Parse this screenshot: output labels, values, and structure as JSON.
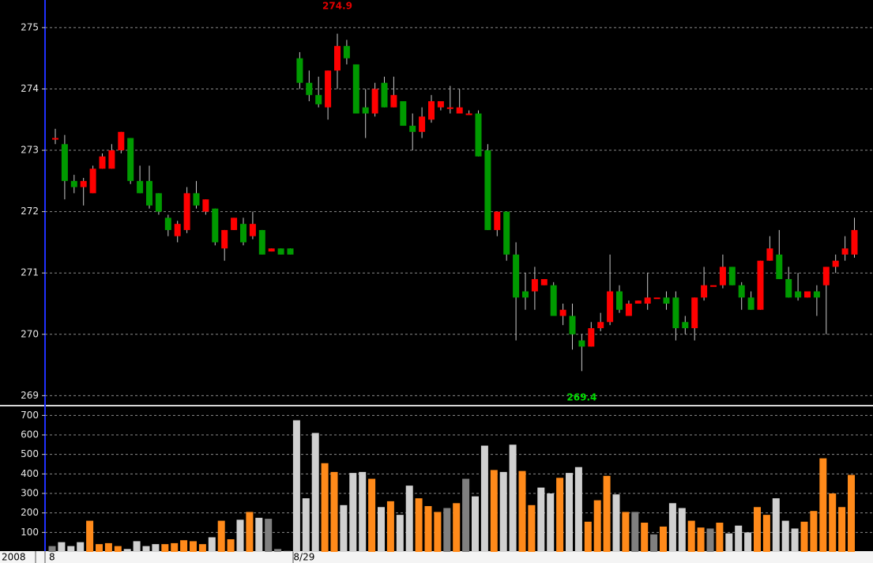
{
  "chart_data": [
    {
      "type": "candlestick",
      "year_label": "2008",
      "categories": [
        "8",
        null,
        null,
        null,
        null,
        null,
        null,
        null,
        null,
        null,
        null,
        null,
        null,
        null,
        null,
        null,
        null,
        null,
        null,
        null,
        null,
        null,
        null,
        null,
        null,
        null,
        "8/29",
        null,
        null,
        null,
        null,
        null,
        null,
        null,
        null,
        null,
        null,
        null,
        null,
        null,
        null,
        null,
        null,
        null,
        null,
        null,
        null,
        null,
        null,
        null,
        null,
        null,
        null,
        null,
        null,
        null,
        null,
        null,
        null,
        null,
        null,
        null,
        null,
        null,
        null,
        null,
        null,
        null,
        null,
        null,
        null,
        null,
        null,
        null,
        null,
        null,
        null,
        null,
        null,
        null,
        null,
        null,
        null,
        null,
        null,
        null
      ],
      "open": [
        273.2,
        273.1,
        272.5,
        272.4,
        272.3,
        272.7,
        272.7,
        273.0,
        273.2,
        272.5,
        272.5,
        272.3,
        271.9,
        271.6,
        271.7,
        272.3,
        272.0,
        272.05,
        271.4,
        271.7,
        271.8,
        271.6,
        271.7,
        271.35,
        271.4,
        271.4,
        274.5,
        274.1,
        273.9,
        273.7,
        274.3,
        274.7,
        274.4,
        273.7,
        273.6,
        274.1,
        273.7,
        273.8,
        273.4,
        273.3,
        273.5,
        273.7,
        273.7,
        273.6,
        273.6,
        273.6,
        273.0,
        271.7,
        272.0,
        271.3,
        270.7,
        270.7,
        270.8,
        270.8,
        270.3,
        270.3,
        269.9,
        269.8,
        270.1,
        270.2,
        270.7,
        270.3,
        270.5,
        270.5,
        270.6,
        270.6,
        270.6,
        270.2,
        270.1,
        270.6,
        270.8,
        270.8,
        271.1,
        270.8,
        270.6,
        270.4,
        271.2,
        271.3,
        270.9,
        270.7,
        270.6,
        270.7,
        270.8,
        271.1,
        271.3,
        271.3
      ],
      "high": [
        273.35,
        273.25,
        272.6,
        272.55,
        272.75,
        272.95,
        273.1,
        273.3,
        273.2,
        272.75,
        272.75,
        272.3,
        271.95,
        271.85,
        272.4,
        272.5,
        272.2,
        272.05,
        271.7,
        271.9,
        271.9,
        272.0,
        271.7,
        271.4,
        271.4,
        271.4,
        274.6,
        274.3,
        274.2,
        274.3,
        274.9,
        274.8,
        274.4,
        274.0,
        274.1,
        274.2,
        274.2,
        273.8,
        273.6,
        273.7,
        273.9,
        273.8,
        274.05,
        274.0,
        273.65,
        273.65,
        273.1,
        272.0,
        272.0,
        271.5,
        271.0,
        271.1,
        270.9,
        270.85,
        270.5,
        270.5,
        270.0,
        270.2,
        270.35,
        271.3,
        270.8,
        270.55,
        270.55,
        271.0,
        270.6,
        270.7,
        270.7,
        270.3,
        270.6,
        271.1,
        270.8,
        271.3,
        271.1,
        270.85,
        270.7,
        271.2,
        271.6,
        271.7,
        271.1,
        271.0,
        270.7,
        270.8,
        271.1,
        271.3,
        271.6,
        271.9
      ],
      "low": [
        273.1,
        272.2,
        272.3,
        272.1,
        272.3,
        272.7,
        272.7,
        272.95,
        272.45,
        272.3,
        272.05,
        271.95,
        271.6,
        271.5,
        271.65,
        272.05,
        271.95,
        271.45,
        271.2,
        271.7,
        271.45,
        271.55,
        271.3,
        271.35,
        271.3,
        271.3,
        274.0,
        273.8,
        273.7,
        273.5,
        274.0,
        274.4,
        273.6,
        273.2,
        273.55,
        273.7,
        273.7,
        273.4,
        273.0,
        273.2,
        273.45,
        273.65,
        273.6,
        273.6,
        273.6,
        272.9,
        271.7,
        271.6,
        271.2,
        269.9,
        270.4,
        270.4,
        270.8,
        270.3,
        270.15,
        269.75,
        269.4,
        269.8,
        270.05,
        270.15,
        270.35,
        270.3,
        270.5,
        270.4,
        270.6,
        270.4,
        269.9,
        270.0,
        269.9,
        270.55,
        270.8,
        270.75,
        270.8,
        270.4,
        270.4,
        270.4,
        271.2,
        270.9,
        270.6,
        270.55,
        270.6,
        270.3,
        270.0,
        271.0,
        271.2,
        271.25
      ],
      "close": [
        273.2,
        272.5,
        272.4,
        272.5,
        272.7,
        272.9,
        273.0,
        273.3,
        272.5,
        272.3,
        272.1,
        272.0,
        271.7,
        271.8,
        272.3,
        272.1,
        272.2,
        271.5,
        271.7,
        271.9,
        271.5,
        271.8,
        271.3,
        271.4,
        271.3,
        271.3,
        274.1,
        273.9,
        273.75,
        274.3,
        274.7,
        274.5,
        273.6,
        273.6,
        274.0,
        273.7,
        273.9,
        273.4,
        273.3,
        273.55,
        273.8,
        273.8,
        273.7,
        273.7,
        273.6,
        272.9,
        271.7,
        272.0,
        271.3,
        270.6,
        270.6,
        270.9,
        270.9,
        270.3,
        270.4,
        270.0,
        269.8,
        270.1,
        270.2,
        270.7,
        270.4,
        270.5,
        270.55,
        270.6,
        270.6,
        270.5,
        270.1,
        270.1,
        270.6,
        270.8,
        270.8,
        271.1,
        270.8,
        270.6,
        270.4,
        271.2,
        271.4,
        270.9,
        270.6,
        270.6,
        270.7,
        270.6,
        271.1,
        271.2,
        271.4,
        271.7
      ],
      "up_color": "#ff0000",
      "down_color": "#009a00",
      "ylim": [
        268.85,
        275.45
      ],
      "yticks": [
        269,
        270,
        271,
        272,
        273,
        274,
        275
      ],
      "grid": true,
      "annotations": [
        {
          "value": 274.9,
          "color": "#e00000"
        },
        {
          "value": 269.4,
          "color": "#00dd00"
        }
      ]
    },
    {
      "type": "bar",
      "values": [
        30,
        50,
        30,
        50,
        160,
        40,
        45,
        30,
        15,
        55,
        30,
        40,
        40,
        45,
        60,
        55,
        40,
        75,
        160,
        65,
        165,
        205,
        175,
        170,
        15,
        5,
        675,
        275,
        610,
        455,
        410,
        240,
        405,
        410,
        375,
        230,
        260,
        190,
        340,
        275,
        235,
        205,
        225,
        250,
        375,
        285,
        545,
        420,
        410,
        550,
        415,
        240,
        330,
        300,
        380,
        405,
        435,
        155,
        265,
        390,
        295,
        205,
        205,
        150,
        90,
        130,
        250,
        225,
        160,
        125,
        120,
        150,
        95,
        135,
        100,
        230,
        190,
        275,
        160,
        120,
        155,
        210,
        480,
        300,
        230,
        395
      ],
      "colors": [
        "#808080",
        "#d0d0d0",
        "#d0d0d0",
        "#d0d0d0",
        "#ff8a1a",
        "#ff8a1a",
        "#ff8a1a",
        "#ff8a1a",
        "#d0d0d0",
        "#d0d0d0",
        "#d0d0d0",
        "#d0d0d0",
        "#ff8a1a",
        "#ff8a1a",
        "#ff8a1a",
        "#ff8a1a",
        "#ff8a1a",
        "#d0d0d0",
        "#ff8a1a",
        "#ff8a1a",
        "#d0d0d0",
        "#ff8a1a",
        "#d0d0d0",
        "#808080",
        "#808080",
        "#d0d0d0",
        "#d0d0d0",
        "#d0d0d0",
        "#d0d0d0",
        "#ff8a1a",
        "#ff8a1a",
        "#d0d0d0",
        "#d0d0d0",
        "#d0d0d0",
        "#ff8a1a",
        "#d0d0d0",
        "#ff8a1a",
        "#d0d0d0",
        "#d0d0d0",
        "#ff8a1a",
        "#ff8a1a",
        "#ff8a1a",
        "#808080",
        "#ff8a1a",
        "#808080",
        "#d0d0d0",
        "#d0d0d0",
        "#ff8a1a",
        "#d0d0d0",
        "#d0d0d0",
        "#ff8a1a",
        "#ff8a1a",
        "#d0d0d0",
        "#d0d0d0",
        "#ff8a1a",
        "#d0d0d0",
        "#d0d0d0",
        "#ff8a1a",
        "#ff8a1a",
        "#ff8a1a",
        "#d0d0d0",
        "#ff8a1a",
        "#808080",
        "#ff8a1a",
        "#808080",
        "#ff8a1a",
        "#d0d0d0",
        "#d0d0d0",
        "#ff8a1a",
        "#ff8a1a",
        "#808080",
        "#ff8a1a",
        "#d0d0d0",
        "#d0d0d0",
        "#d0d0d0",
        "#ff8a1a",
        "#ff8a1a",
        "#d0d0d0",
        "#d0d0d0",
        "#d0d0d0",
        "#ff8a1a",
        "#ff8a1a",
        "#ff8a1a",
        "#ff8a1a",
        "#ff8a1a",
        "#ff8a1a"
      ],
      "ylim": [
        0,
        742
      ],
      "yticks": [
        100,
        200,
        300,
        400,
        500,
        600,
        700
      ],
      "grid": true
    }
  ]
}
